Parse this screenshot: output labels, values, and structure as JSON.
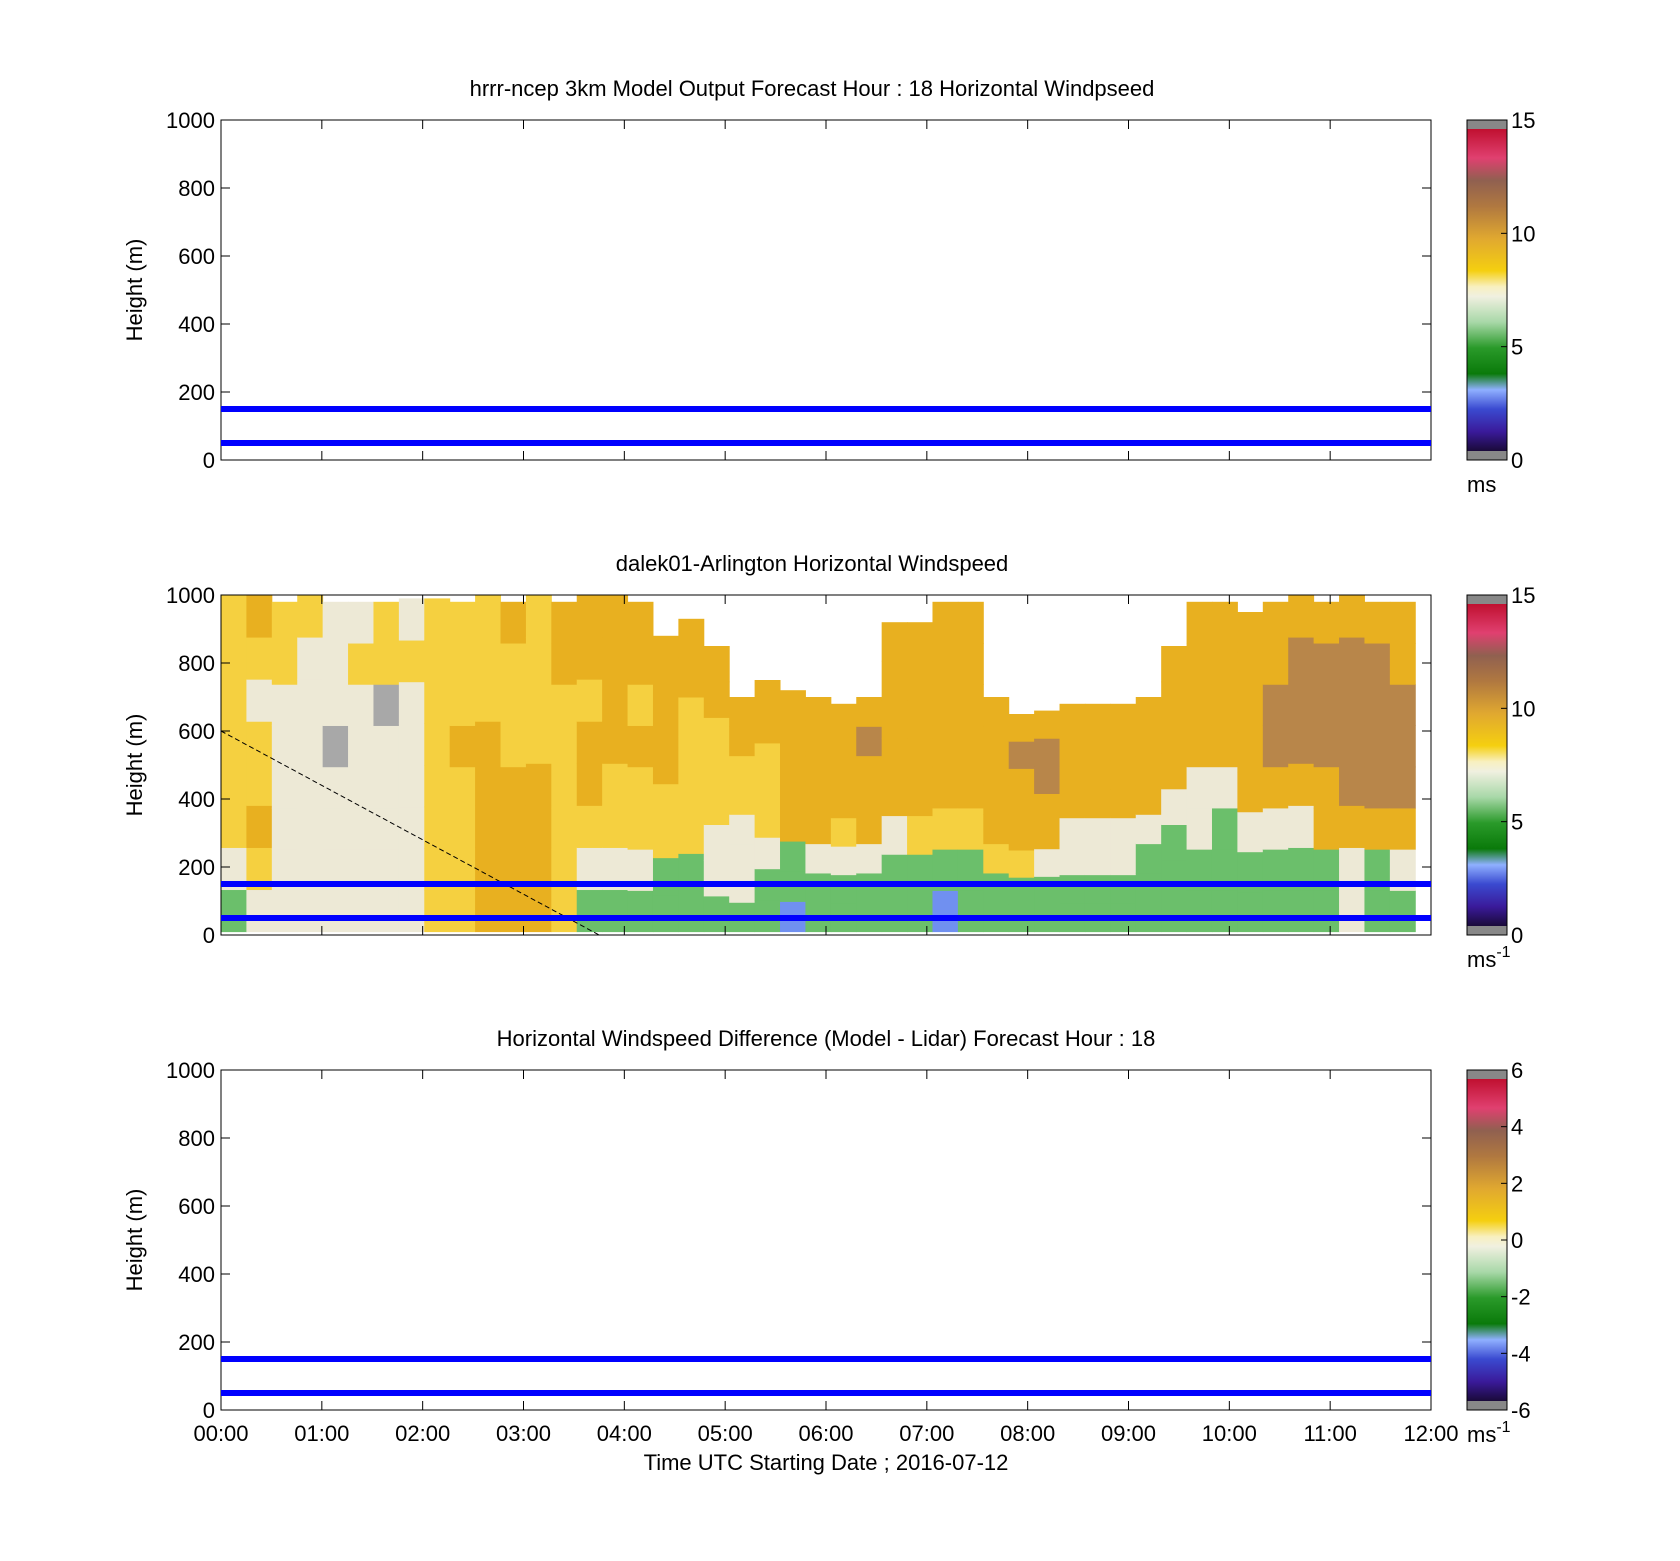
{
  "chart_data": [
    {
      "type": "heatmap",
      "title": "hrrr-ncep 3km Model Output   Forecast Hour : 18 Horizontal Windpseed",
      "ylabel": "Height (m)",
      "xlabel": "",
      "ylim": [
        0,
        1000
      ],
      "yticks": [
        "0",
        "200",
        "400",
        "600",
        "800",
        "1000"
      ],
      "xticks": [
        "00:00",
        "01:00",
        "02:00",
        "03:00",
        "04:00",
        "05:00",
        "06:00",
        "07:00",
        "08:00",
        "09:00",
        "10:00",
        "11:00",
        "12:00"
      ],
      "show_xtick_labels": false,
      "colorbar": {
        "min": 0,
        "max": 15,
        "ticks": [
          "0",
          "5",
          "10",
          "15"
        ],
        "unit": "ms",
        "unit_sup": ""
      },
      "reference_lines_m": [
        150,
        50
      ],
      "reference_line_color": "#0000ff",
      "cells": [],
      "diagonal": null
    },
    {
      "type": "heatmap",
      "title": "dalek01-Arlington  Horizontal Windspeed",
      "ylabel": "Height (m)",
      "xlabel": "",
      "ylim": [
        0,
        1000
      ],
      "yticks": [
        "0",
        "200",
        "400",
        "600",
        "800",
        "1000"
      ],
      "xticks": [
        "00:00",
        "01:00",
        "02:00",
        "03:00",
        "04:00",
        "05:00",
        "06:00",
        "07:00",
        "08:00",
        "09:00",
        "10:00",
        "11:00",
        "12:00"
      ],
      "show_xtick_labels": false,
      "colorbar": {
        "min": 0,
        "max": 15,
        "ticks": [
          "0",
          "5",
          "10",
          "15"
        ],
        "unit": "ms",
        "unit_sup": "-1"
      },
      "reference_lines_m": [
        150,
        50
      ],
      "reference_line_color": "#0000ff",
      "column_top_heights_m": [
        1000,
        1000,
        980,
        1000,
        980,
        980,
        980,
        990,
        990,
        980,
        1000,
        980,
        1000,
        980,
        1000,
        1000,
        980,
        880,
        930,
        850,
        700,
        750,
        720,
        700,
        680,
        700,
        920,
        920,
        980,
        980,
        700,
        650,
        660,
        680,
        680,
        680,
        700,
        850,
        980,
        980,
        950,
        980,
        1000,
        980,
        1000,
        980,
        980
      ],
      "column_categories_low_to_high": [
        [
          "green",
          "white",
          "yellow",
          "yellow",
          "yellow",
          "yellow",
          "yellow",
          "yellow"
        ],
        [
          "white",
          "yellow",
          "gold",
          "yellow",
          "yellow",
          "white",
          "yellow",
          "gold"
        ],
        [
          "white",
          "white",
          "white",
          "white",
          "white",
          "white",
          "yellow",
          "yellow"
        ],
        [
          "white",
          "white",
          "white",
          "white",
          "white",
          "white",
          "white",
          "yellow"
        ],
        [
          "white",
          "white",
          "white",
          "white",
          "grey",
          "white",
          "white",
          "white"
        ],
        [
          "white",
          "white",
          "white",
          "white",
          "white",
          "white",
          "yellow",
          "white"
        ],
        [
          "white",
          "white",
          "white",
          "white",
          "white",
          "grey",
          "yellow",
          "yellow"
        ],
        [
          "white",
          "white",
          "white",
          "white",
          "white",
          "white",
          "yellow",
          "white"
        ],
        [
          "yellow",
          "yellow",
          "yellow",
          "yellow",
          "yellow",
          "yellow",
          "yellow",
          "yellow"
        ],
        [
          "yellow",
          "yellow",
          "yellow",
          "yellow",
          "gold",
          "yellow",
          "yellow",
          "yellow"
        ],
        [
          "gold",
          "gold",
          "gold",
          "gold",
          "gold",
          "yellow",
          "yellow",
          "yellow"
        ],
        [
          "gold",
          "gold",
          "gold",
          "gold",
          "yellow",
          "yellow",
          "yellow",
          "gold"
        ],
        [
          "gold",
          "gold",
          "gold",
          "gold",
          "yellow",
          "yellow",
          "yellow",
          "yellow"
        ],
        [
          "yellow",
          "yellow",
          "yellow",
          "yellow",
          "yellow",
          "yellow",
          "gold",
          "gold"
        ],
        [
          "green",
          "white",
          "yellow",
          "gold",
          "gold",
          "yellow",
          "gold",
          "gold"
        ],
        [
          "green",
          "white",
          "yellow",
          "yellow",
          "gold",
          "gold",
          "gold",
          "gold"
        ],
        [
          "green",
          "white",
          "yellow",
          "yellow",
          "gold",
          "yellow",
          "gold",
          "gold"
        ],
        [
          "green",
          "green",
          "yellow",
          "yellow",
          "gold",
          "gold",
          "gold",
          "gold"
        ],
        [
          "green",
          "green",
          "yellow",
          "yellow",
          "yellow",
          "yellow",
          "gold",
          "gold"
        ],
        [
          "green",
          "white",
          "white",
          "yellow",
          "yellow",
          "yellow",
          "gold",
          "gold"
        ],
        [
          "green",
          "white",
          "white",
          "white",
          "yellow",
          "yellow",
          "gold",
          "gold"
        ],
        [
          "green",
          "green",
          "white",
          "yellow",
          "yellow",
          "yellow",
          "gold",
          "gold"
        ],
        [
          "blue",
          "green",
          "green",
          "gold",
          "gold",
          "gold",
          "gold",
          "gold"
        ],
        [
          "green",
          "green",
          "white",
          "gold",
          "gold",
          "gold",
          "gold",
          "gold"
        ],
        [
          "green",
          "green",
          "white",
          "yellow",
          "gold",
          "gold",
          "gold",
          "gold"
        ],
        [
          "green",
          "green",
          "white",
          "gold",
          "gold",
          "gold",
          "brown",
          "gold"
        ],
        [
          "green",
          "green",
          "white",
          "gold",
          "gold",
          "gold",
          "gold",
          "gold"
        ],
        [
          "green",
          "green",
          "yellow",
          "gold",
          "gold",
          "gold",
          "gold",
          "gold"
        ],
        [
          "blue",
          "green",
          "yellow",
          "gold",
          "gold",
          "gold",
          "gold",
          "gold"
        ],
        [
          "green",
          "green",
          "yellow",
          "gold",
          "gold",
          "gold",
          "gold",
          "gold"
        ],
        [
          "green",
          "green",
          "yellow",
          "gold",
          "gold",
          "gold",
          "gold",
          "gold"
        ],
        [
          "green",
          "green",
          "yellow",
          "gold",
          "gold",
          "gold",
          "brown",
          "gold"
        ],
        [
          "green",
          "green",
          "white",
          "gold",
          "gold",
          "brown",
          "brown",
          "gold"
        ],
        [
          "green",
          "green",
          "white",
          "white",
          "gold",
          "gold",
          "gold",
          "gold"
        ],
        [
          "green",
          "green",
          "white",
          "white",
          "gold",
          "gold",
          "gold",
          "gold"
        ],
        [
          "green",
          "green",
          "white",
          "white",
          "gold",
          "gold",
          "gold",
          "gold"
        ],
        [
          "green",
          "green",
          "green",
          "white",
          "gold",
          "gold",
          "gold",
          "gold"
        ],
        [
          "green",
          "green",
          "green",
          "white",
          "gold",
          "gold",
          "gold",
          "gold"
        ],
        [
          "green",
          "green",
          "white",
          "white",
          "gold",
          "gold",
          "gold",
          "gold"
        ],
        [
          "green",
          "green",
          "green",
          "white",
          "gold",
          "gold",
          "gold",
          "gold"
        ],
        [
          "green",
          "green",
          "white",
          "gold",
          "gold",
          "gold",
          "gold",
          "gold"
        ],
        [
          "green",
          "green",
          "white",
          "gold",
          "brown",
          "brown",
          "gold",
          "gold"
        ],
        [
          "green",
          "green",
          "white",
          "gold",
          "brown",
          "brown",
          "brown",
          "gold"
        ],
        [
          "green",
          "green",
          "gold",
          "gold",
          "brown",
          "brown",
          "brown",
          "gold"
        ],
        [
          "white",
          "white",
          "gold",
          "brown",
          "brown",
          "brown",
          "brown",
          "gold"
        ],
        [
          "green",
          "green",
          "gold",
          "brown",
          "brown",
          "brown",
          "brown",
          "gold"
        ],
        [
          "green",
          "white",
          "gold",
          "brown",
          "brown",
          "brown",
          "gold",
          "gold"
        ]
      ],
      "category_colors": {
        "white": "#ede9d6",
        "yellow": "#f5d040",
        "gold": "#e8b020",
        "brown": "#b8864a",
        "green": "#6bbf6b",
        "blue": "#7090f0",
        "grey": "#a8a8a8"
      },
      "diagonal": {
        "x": [
          "00:00",
          "03:45"
        ],
        "y": [
          600,
          0
        ]
      }
    },
    {
      "type": "heatmap",
      "title": "Horizontal Windspeed Difference (Model - Lidar) Forecast Hour : 18",
      "ylabel": "Height (m)",
      "xlabel": "Time UTC  Starting Date ; 2016-07-12",
      "ylim": [
        0,
        1000
      ],
      "yticks": [
        "0",
        "200",
        "400",
        "600",
        "800",
        "1000"
      ],
      "xticks": [
        "00:00",
        "01:00",
        "02:00",
        "03:00",
        "04:00",
        "05:00",
        "06:00",
        "07:00",
        "08:00",
        "09:00",
        "10:00",
        "11:00",
        "12:00"
      ],
      "show_xtick_labels": true,
      "colorbar": {
        "min": -6,
        "max": 6,
        "ticks": [
          "-6",
          "-4",
          "-2",
          "0",
          "2",
          "4",
          "6"
        ],
        "unit": "ms",
        "unit_sup": "-1"
      },
      "reference_lines_m": [
        150,
        50
      ],
      "reference_line_color": "#0000ff",
      "cells": [],
      "diagonal": null
    }
  ]
}
